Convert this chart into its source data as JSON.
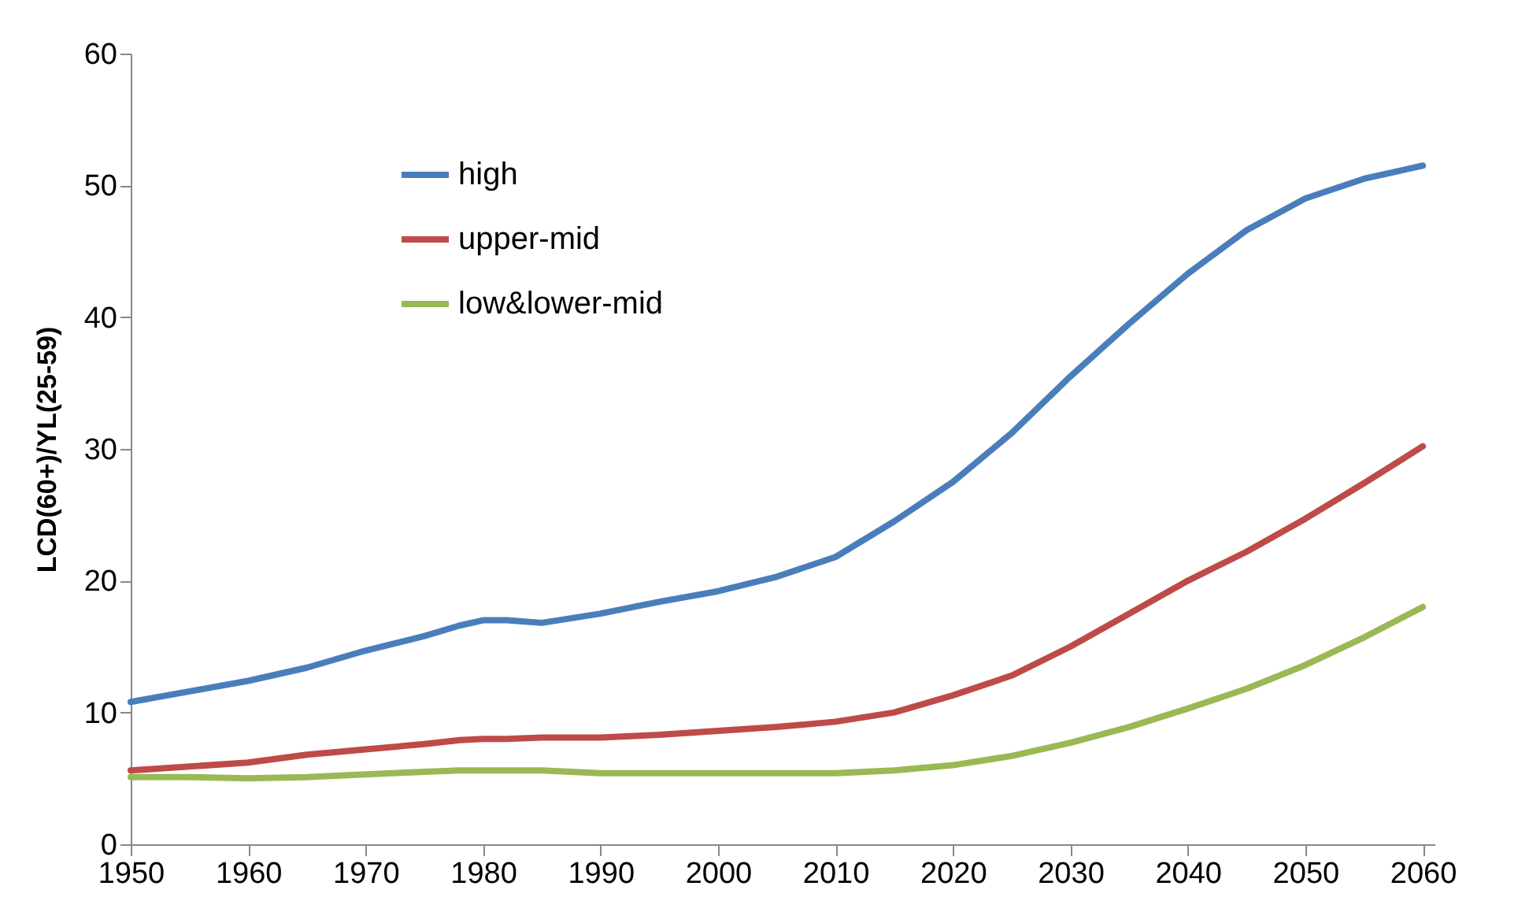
{
  "chart_data": {
    "type": "line",
    "ylabel": "LCD(60+)/YL(25-59)",
    "x": [
      1950,
      1955,
      1960,
      1965,
      1970,
      1975,
      1978,
      1980,
      1982,
      1985,
      1990,
      1995,
      2000,
      2005,
      2010,
      2015,
      2020,
      2025,
      2030,
      2035,
      2040,
      2045,
      2050,
      2055,
      2060
    ],
    "series": [
      {
        "name": "high",
        "color": "#4a7ebb",
        "values": [
          10.8,
          11.6,
          12.4,
          13.4,
          14.7,
          15.8,
          16.6,
          17.0,
          17.0,
          16.8,
          17.5,
          18.4,
          19.2,
          20.3,
          21.8,
          24.5,
          27.5,
          31.2,
          35.5,
          39.5,
          43.3,
          46.6,
          49.0,
          50.5,
          51.5
        ]
      },
      {
        "name": "upper-mid",
        "color": "#be4b48",
        "values": [
          5.6,
          5.9,
          6.2,
          6.8,
          7.2,
          7.6,
          7.9,
          8.0,
          8.0,
          8.1,
          8.1,
          8.3,
          8.6,
          8.9,
          9.3,
          10.0,
          11.3,
          12.8,
          15.0,
          17.5,
          20.0,
          22.2,
          24.7,
          27.4,
          30.2
        ]
      },
      {
        "name": "low&lower-mid",
        "color": "#98b954",
        "values": [
          5.1,
          5.1,
          5.0,
          5.1,
          5.3,
          5.5,
          5.6,
          5.6,
          5.6,
          5.6,
          5.4,
          5.4,
          5.4,
          5.4,
          5.4,
          5.6,
          6.0,
          6.7,
          7.7,
          8.9,
          10.3,
          11.8,
          13.6,
          15.7,
          18.0
        ]
      }
    ],
    "xlim": [
      1950,
      2061
    ],
    "xticks": [
      1950,
      1960,
      1970,
      1980,
      1990,
      2000,
      2010,
      2020,
      2030,
      2040,
      2050,
      2060
    ],
    "ylim": [
      0,
      60
    ],
    "yticks": [
      0,
      10,
      20,
      30,
      40,
      50,
      60
    ],
    "grid": false,
    "legend": "top left",
    "marker": "none",
    "line_style": "solid"
  }
}
